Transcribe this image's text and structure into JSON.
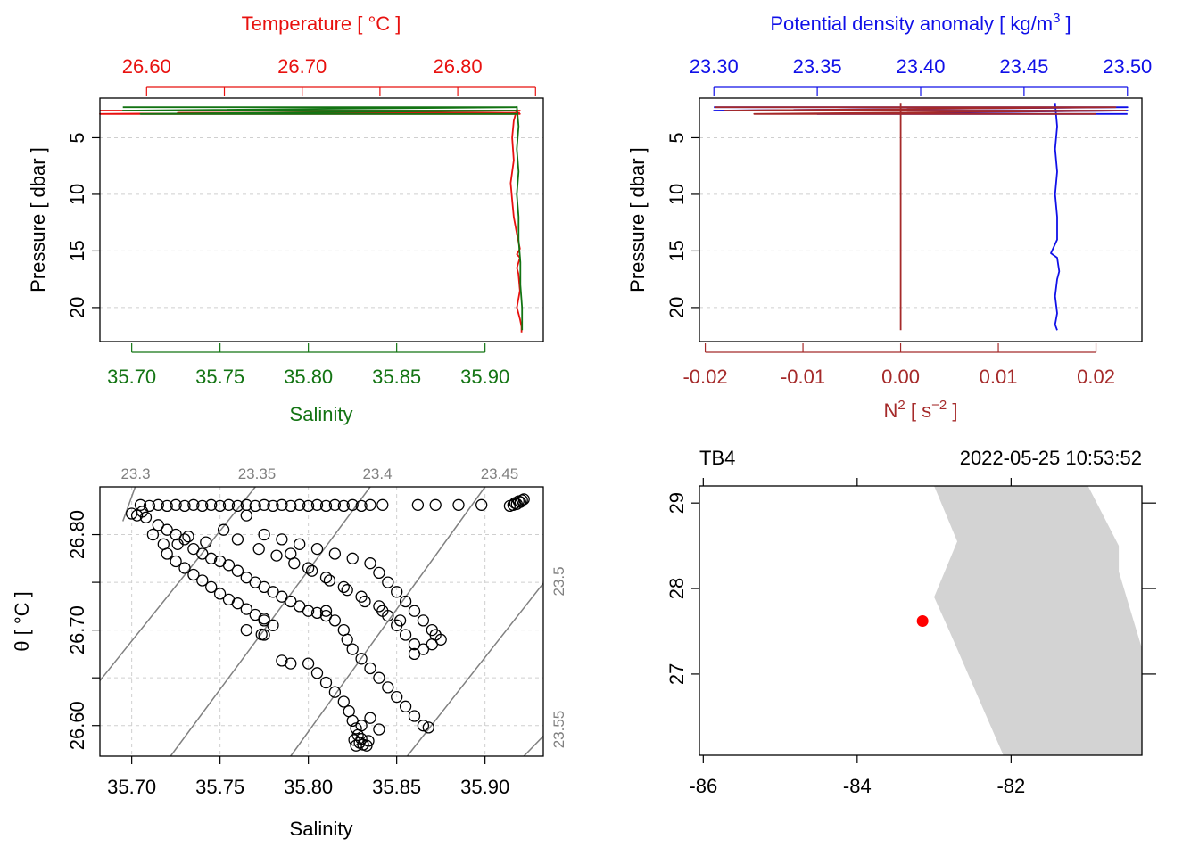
{
  "colors": {
    "temperature": "#e8110f",
    "salinity": "#137413",
    "density": "#1010e8",
    "n2": "#a52a2a",
    "grid": "#cfcfcf",
    "isopycnal": "#808080",
    "land": "#d3d3d3",
    "station": "#ff0000"
  },
  "chart_data": [
    {
      "type": "line",
      "panel": "top-left",
      "top_axis": {
        "label": "Temperature [ °C ]",
        "tick_labels": [
          "26.60",
          "26.70",
          "26.80"
        ],
        "ticks": [
          26.6,
          26.65,
          26.7,
          26.75,
          26.8,
          26.85
        ],
        "range": [
          26.57,
          26.855
        ]
      },
      "bottom_axis": {
        "label": "Salinity",
        "tick_labels": [
          "35.70",
          "35.75",
          "35.80",
          "35.85",
          "35.90"
        ],
        "ticks": [
          35.7,
          35.75,
          35.8,
          35.85,
          35.9
        ],
        "range": [
          35.682,
          35.933
        ]
      },
      "y_axis": {
        "label": "Pressure [ dbar ]",
        "tick_labels": [
          "5",
          "10",
          "15",
          "20"
        ],
        "ticks": [
          5,
          10,
          15,
          20
        ],
        "range": [
          23,
          1.5
        ],
        "reversed": true
      },
      "grid": true,
      "series": [
        {
          "axis": "top",
          "x": [
            26.838,
            26.836,
            26.835,
            26.836,
            26.834,
            26.835,
            26.836,
            26.838,
            26.84,
            26.838,
            26.84,
            26.838,
            26.839,
            26.84,
            26.838,
            26.84,
            26.841,
            26.841
          ],
          "y": [
            2.5,
            3.5,
            5.0,
            7.0,
            9.0,
            10.5,
            12.0,
            13.5,
            14.8,
            15.3,
            15.6,
            16.5,
            17.0,
            18.5,
            20.0,
            21.0,
            21.7,
            22.2
          ]
        },
        {
          "axis": "top",
          "x": [
            26.57,
            26.84,
            26.57,
            26.84,
            26.62,
            26.84
          ],
          "y": [
            2.6,
            2.6,
            2.9,
            2.9,
            2.8,
            2.8
          ]
        },
        {
          "axis": "bottom",
          "x": [
            35.918,
            35.919,
            35.918,
            35.919,
            35.918,
            35.919,
            35.919,
            35.92,
            35.92,
            35.921,
            35.921
          ],
          "y": [
            2.2,
            4.0,
            6.0,
            8.0,
            10.0,
            12.0,
            14.0,
            16.0,
            18.0,
            20.0,
            22.0
          ]
        },
        {
          "axis": "bottom",
          "x": [
            35.695,
            35.918,
            35.695,
            35.918,
            35.705,
            35.918
          ],
          "y": [
            2.3,
            2.3,
            2.6,
            2.6,
            2.9,
            2.9
          ]
        }
      ]
    },
    {
      "type": "line",
      "panel": "top-right",
      "top_axis": {
        "label_main": "Potential density anomaly [ kg/m",
        "label_sup": "3",
        "label_end": " ]",
        "tick_labels": [
          "23.30",
          "23.35",
          "23.40",
          "23.45",
          "23.50"
        ],
        "ticks": [
          23.3,
          23.35,
          23.4,
          23.45,
          23.5
        ],
        "range": [
          23.293,
          23.507
        ]
      },
      "bottom_axis": {
        "label_main": "N",
        "label_sup": "2",
        "label_mid": " [ s",
        "label_sup2": "−2",
        "label_end": " ]",
        "tick_labels": [
          "-0.02",
          "-0.01",
          "0.00",
          "0.01",
          "0.02"
        ],
        "ticks": [
          -0.02,
          -0.01,
          0,
          0.01,
          0.02
        ],
        "range": [
          -0.0206,
          0.0247
        ]
      },
      "y_axis": {
        "label": "Pressure [ dbar ]",
        "tick_labels": [
          "5",
          "10",
          "15",
          "20"
        ],
        "ticks": [
          5,
          10,
          15,
          20
        ],
        "range": [
          23,
          1.5
        ],
        "reversed": true
      },
      "grid": true,
      "series": [
        {
          "axis": "top",
          "x": [
            23.465,
            23.466,
            23.465,
            23.466,
            23.465,
            23.466,
            23.466,
            23.463,
            23.466,
            23.467,
            23.466,
            23.465,
            23.466,
            23.465,
            23.466
          ],
          "y": [
            2.0,
            4.0,
            6.0,
            8.0,
            10.0,
            12.0,
            14.0,
            15.2,
            15.6,
            16.8,
            17.5,
            19.0,
            20.5,
            21.5,
            22.0
          ]
        },
        {
          "axis": "top",
          "x": [
            23.3,
            23.5,
            23.3,
            23.5,
            23.35,
            23.5
          ],
          "y": [
            2.3,
            2.3,
            2.6,
            2.6,
            2.9,
            2.9
          ]
        },
        {
          "axis": "bottom",
          "x": [
            0,
            0,
            0,
            0,
            0,
            0
          ],
          "y": [
            2.0,
            6.0,
            10.0,
            14.0,
            18.0,
            22.0
          ]
        },
        {
          "axis": "bottom",
          "x": [
            -0.019,
            0.022,
            -0.018,
            0.023,
            -0.015,
            0.02
          ],
          "y": [
            2.3,
            2.3,
            2.6,
            2.6,
            2.9,
            2.9
          ]
        }
      ]
    },
    {
      "type": "scatter",
      "panel": "bottom-left",
      "x_axis": {
        "label": "Salinity",
        "tick_labels": [
          "35.70",
          "35.75",
          "35.80",
          "35.85",
          "35.90"
        ],
        "ticks": [
          35.7,
          35.75,
          35.8,
          35.85,
          35.9
        ],
        "range": [
          35.682,
          35.933
        ]
      },
      "y_axis": {
        "label": "θ [ °C ]",
        "tick_labels": [
          "26.60",
          "26.70",
          "26.80"
        ],
        "ticks": [
          26.6,
          26.65,
          26.7,
          26.75,
          26.8
        ],
        "range": [
          26.568,
          26.85
        ]
      },
      "grid": true,
      "isopycnals": [
        {
          "label": "23.3",
          "x1": 35.695,
          "y1": 26.814,
          "x2": 35.702,
          "y2": 26.85
        },
        {
          "label": "23.35",
          "x1": 35.682,
          "y1": 26.647,
          "x2": 35.77,
          "y2": 26.85
        },
        {
          "label": "23.4",
          "x1": 35.722,
          "y1": 26.568,
          "x2": 35.835,
          "y2": 26.85
        },
        {
          "label": "23.45",
          "x1": 35.79,
          "y1": 26.568,
          "x2": 35.9,
          "y2": 26.85
        },
        {
          "label": "23.5",
          "x1": 35.856,
          "y1": 26.568,
          "x2": 35.933,
          "y2": 26.749
        },
        {
          "label": "23.55",
          "x1": 35.922,
          "y1": 26.568,
          "x2": 35.933,
          "y2": 26.589
        }
      ],
      "points": [
        [
          35.917,
          26.833
        ],
        [
          35.919,
          26.835
        ],
        [
          35.92,
          26.834
        ],
        [
          35.921,
          26.836
        ],
        [
          35.918,
          26.832
        ],
        [
          35.916,
          26.831
        ],
        [
          35.914,
          26.83
        ],
        [
          35.922,
          26.837
        ],
        [
          35.898,
          26.831
        ],
        [
          35.885,
          26.831
        ],
        [
          35.872,
          26.831
        ],
        [
          35.862,
          26.831
        ],
        [
          35.842,
          26.831
        ],
        [
          35.835,
          26.831
        ],
        [
          35.83,
          26.83
        ],
        [
          35.825,
          26.831
        ],
        [
          35.82,
          26.83
        ],
        [
          35.815,
          26.831
        ],
        [
          35.81,
          26.83
        ],
        [
          35.805,
          26.831
        ],
        [
          35.8,
          26.83
        ],
        [
          35.795,
          26.831
        ],
        [
          35.79,
          26.83
        ],
        [
          35.785,
          26.831
        ],
        [
          35.78,
          26.83
        ],
        [
          35.775,
          26.831
        ],
        [
          35.77,
          26.83
        ],
        [
          35.765,
          26.831
        ],
        [
          35.76,
          26.83
        ],
        [
          35.755,
          26.831
        ],
        [
          35.75,
          26.83
        ],
        [
          35.745,
          26.831
        ],
        [
          35.74,
          26.83
        ],
        [
          35.735,
          26.831
        ],
        [
          35.73,
          26.83
        ],
        [
          35.725,
          26.831
        ],
        [
          35.72,
          26.83
        ],
        [
          35.715,
          26.831
        ],
        [
          35.71,
          26.83
        ],
        [
          35.705,
          26.831
        ],
        [
          35.7,
          26.822
        ],
        [
          35.703,
          26.82
        ],
        [
          35.706,
          26.824
        ],
        [
          35.708,
          26.818
        ],
        [
          35.715,
          26.81
        ],
        [
          35.72,
          26.805
        ],
        [
          35.725,
          26.8
        ],
        [
          35.73,
          26.795
        ],
        [
          35.735,
          26.785
        ],
        [
          35.74,
          26.78
        ],
        [
          35.745,
          26.775
        ],
        [
          35.75,
          26.772
        ],
        [
          35.755,
          26.768
        ],
        [
          35.76,
          26.762
        ],
        [
          35.765,
          26.755
        ],
        [
          35.77,
          26.75
        ],
        [
          35.775,
          26.745
        ],
        [
          35.78,
          26.74
        ],
        [
          35.785,
          26.735
        ],
        [
          35.79,
          26.73
        ],
        [
          35.795,
          26.725
        ],
        [
          35.8,
          26.72
        ],
        [
          35.805,
          26.718
        ],
        [
          35.81,
          26.715
        ],
        [
          35.72,
          26.78
        ],
        [
          35.725,
          26.772
        ],
        [
          35.73,
          26.765
        ],
        [
          35.735,
          26.758
        ],
        [
          35.74,
          26.752
        ],
        [
          35.745,
          26.745
        ],
        [
          35.75,
          26.738
        ],
        [
          35.755,
          26.732
        ],
        [
          35.76,
          26.728
        ],
        [
          35.765,
          26.722
        ],
        [
          35.77,
          26.716
        ],
        [
          35.775,
          26.71
        ],
        [
          35.78,
          26.705
        ],
        [
          35.765,
          26.82
        ],
        [
          35.775,
          26.8
        ],
        [
          35.785,
          26.795
        ],
        [
          35.795,
          26.79
        ],
        [
          35.805,
          26.785
        ],
        [
          35.815,
          26.78
        ],
        [
          35.825,
          26.775
        ],
        [
          35.835,
          26.77
        ],
        [
          35.84,
          26.76
        ],
        [
          35.845,
          26.75
        ],
        [
          35.85,
          26.74
        ],
        [
          35.855,
          26.73
        ],
        [
          35.86,
          26.72
        ],
        [
          35.865,
          26.71
        ],
        [
          35.87,
          26.7
        ],
        [
          35.872,
          26.695
        ],
        [
          35.875,
          26.69
        ],
        [
          35.87,
          26.685
        ],
        [
          35.865,
          26.68
        ],
        [
          35.86,
          26.675
        ],
        [
          35.79,
          26.78
        ],
        [
          35.8,
          26.765
        ],
        [
          35.81,
          26.755
        ],
        [
          35.82,
          26.745
        ],
        [
          35.83,
          26.735
        ],
        [
          35.84,
          26.725
        ],
        [
          35.845,
          26.715
        ],
        [
          35.85,
          26.705
        ],
        [
          35.855,
          26.695
        ],
        [
          35.86,
          26.685
        ],
        [
          35.81,
          26.72
        ],
        [
          35.815,
          26.71
        ],
        [
          35.82,
          26.7
        ],
        [
          35.822,
          26.69
        ],
        [
          35.825,
          26.68
        ],
        [
          35.83,
          26.67
        ],
        [
          35.835,
          26.66
        ],
        [
          35.84,
          26.65
        ],
        [
          35.845,
          26.64
        ],
        [
          35.85,
          26.63
        ],
        [
          35.855,
          26.62
        ],
        [
          35.86,
          26.61
        ],
        [
          35.865,
          26.6
        ],
        [
          35.868,
          26.598
        ],
        [
          35.8,
          26.665
        ],
        [
          35.805,
          26.655
        ],
        [
          35.81,
          26.645
        ],
        [
          35.815,
          26.635
        ],
        [
          35.82,
          26.625
        ],
        [
          35.823,
          26.615
        ],
        [
          35.825,
          26.605
        ],
        [
          35.827,
          26.597
        ],
        [
          35.828,
          26.59
        ],
        [
          35.826,
          26.585
        ],
        [
          35.829,
          26.582
        ],
        [
          35.831,
          26.58
        ],
        [
          35.833,
          26.579
        ],
        [
          35.827,
          26.579
        ],
        [
          35.83,
          26.586
        ],
        [
          35.834,
          26.584
        ],
        [
          35.84,
          26.596
        ],
        [
          35.835,
          26.608
        ],
        [
          35.83,
          26.6
        ],
        [
          35.775,
          26.695
        ],
        [
          35.785,
          26.668
        ],
        [
          35.79,
          26.665
        ],
        [
          35.775,
          26.712
        ],
        [
          35.765,
          26.7
        ],
        [
          35.7735,
          26.6955
        ],
        [
          35.712,
          26.8
        ],
        [
          35.718,
          26.79
        ],
        [
          35.726,
          26.79
        ],
        [
          35.732,
          26.798
        ],
        [
          35.742,
          26.792
        ],
        [
          35.752,
          26.805
        ],
        [
          35.76,
          26.795
        ],
        [
          35.772,
          26.785
        ],
        [
          35.782,
          26.778
        ],
        [
          35.792,
          26.77
        ],
        [
          35.802,
          26.762
        ],
        [
          35.812,
          26.752
        ],
        [
          35.822,
          26.742
        ],
        [
          35.832,
          26.73
        ],
        [
          35.842,
          26.72
        ],
        [
          35.852,
          26.71
        ]
      ]
    },
    {
      "type": "scatter",
      "panel": "bottom-right",
      "station": "TB4",
      "datetime": "2022-05-25 10:53:52",
      "x_axis": {
        "tick_labels": [
          "-86",
          "-84",
          "-82"
        ],
        "ticks": [
          -86,
          -84,
          -82
        ],
        "range": [
          -86.05,
          -80.3
        ]
      },
      "y_axis": {
        "tick_labels": [
          "27",
          "28",
          "29"
        ],
        "ticks": [
          27,
          28,
          29
        ],
        "range": [
          26.05,
          29.2
        ]
      },
      "top_ticks": [
        -86,
        -84,
        -82
      ],
      "right_ticks": [
        27,
        28,
        29
      ],
      "land": [
        [
          -83.0,
          29.2
        ],
        [
          -81.0,
          29.2
        ],
        [
          -80.6,
          28.5
        ],
        [
          -80.6,
          28.2
        ],
        [
          -80.3,
          27.3
        ],
        [
          -80.3,
          26.05
        ],
        [
          -82.1,
          26.05
        ],
        [
          -82.8,
          27.5
        ],
        [
          -83.0,
          27.9
        ],
        [
          -82.7,
          28.55
        ]
      ],
      "station_point": {
        "lon": -83.15,
        "lat": 27.62
      }
    }
  ]
}
